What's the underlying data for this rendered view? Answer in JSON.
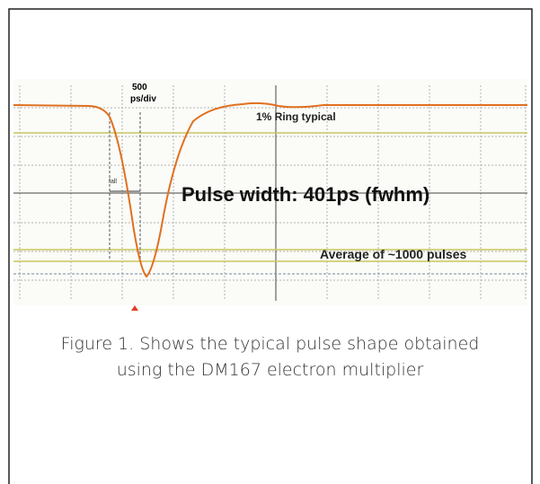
{
  "figure": {
    "scope": {
      "timebase_value": "500",
      "timebase_unit": "ps/div",
      "ring_note": "1% Ring typical",
      "fall_marker": "fall",
      "pulse_width": "Pulse width: 401ps (fwhm)",
      "averaging": "Average of ~1000 pulses"
    },
    "caption": {
      "line1": "Figure 1. Shows the typical pulse shape obtained",
      "line2": "using the DM167 electron multiplier"
    }
  }
}
